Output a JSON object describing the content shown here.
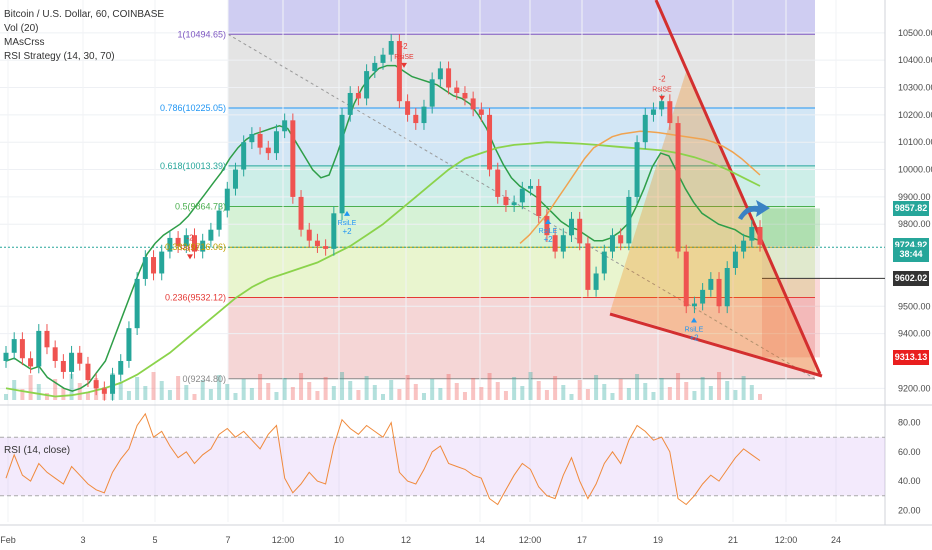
{
  "header": {
    "symbol_line": "Bitcoin / U.S. Dollar, 60, COINBASE",
    "indicators": [
      "Vol (20)",
      "MAsCrss",
      "RSI Strategy (14, 30, 70)"
    ]
  },
  "rsi_panel": {
    "label": "RSI (14, close)"
  },
  "price_axis": {
    "ticks": [
      {
        "value": 10500,
        "label": "10500.00"
      },
      {
        "value": 10400,
        "label": "10400.00"
      },
      {
        "value": 10300,
        "label": "10300.00"
      },
      {
        "value": 10200,
        "label": "10200.00"
      },
      {
        "value": 10100,
        "label": "10100.00"
      },
      {
        "value": 10000,
        "label": "10000.00"
      },
      {
        "value": 9900,
        "label": "9900.00"
      },
      {
        "value": 9800,
        "label": "9800.00"
      },
      {
        "value": 9500,
        "label": "9500.00"
      },
      {
        "value": 9400,
        "label": "9400.00"
      },
      {
        "value": 9200,
        "label": "9200.00"
      }
    ],
    "tags": [
      {
        "value": 9857.82,
        "label": "9857.82",
        "color": "#26a69a"
      },
      {
        "value": 9724.92,
        "label": "9724.92",
        "color": "#26a69a"
      },
      {
        "value": 9690,
        "label": "38:44",
        "color": "#26a69a"
      },
      {
        "value": 9602.02,
        "label": "9602.02",
        "color": "#333333"
      },
      {
        "value": 9313.13,
        "label": "9313.13",
        "color": "#e91e1e"
      }
    ]
  },
  "rsi_axis": {
    "ticks": [
      {
        "value": 80,
        "label": "80.00"
      },
      {
        "value": 60,
        "label": "60.00"
      },
      {
        "value": 40,
        "label": "40.00"
      },
      {
        "value": 20,
        "label": "20.00"
      }
    ]
  },
  "time_axis": {
    "labels": [
      {
        "x": 8,
        "label": "Feb"
      },
      {
        "x": 83,
        "label": "3"
      },
      {
        "x": 155,
        "label": "5"
      },
      {
        "x": 228,
        "label": "7"
      },
      {
        "x": 283,
        "label": "12:00"
      },
      {
        "x": 339,
        "label": "10"
      },
      {
        "x": 406,
        "label": "12"
      },
      {
        "x": 480,
        "label": "14"
      },
      {
        "x": 530,
        "label": "12:00"
      },
      {
        "x": 582,
        "label": "17"
      },
      {
        "x": 658,
        "label": "19"
      },
      {
        "x": 733,
        "label": "21"
      },
      {
        "x": 786,
        "label": "12:00"
      },
      {
        "x": 836,
        "label": "24"
      }
    ]
  },
  "fibonacci": [
    {
      "level": "1",
      "price": 10494.65,
      "label": "1(10494.65)",
      "color": "#7e57c2"
    },
    {
      "level": "0.786",
      "price": 10225.05,
      "label": "0.786(10225.05)",
      "color": "#2196f3"
    },
    {
      "level": "0.618",
      "price": 10013.39,
      "label": "0.618(10013.39)",
      "color": "#26a69a"
    },
    {
      "level": "0.5",
      "price": 9864.73,
      "label": "0.5(9864.73)",
      "color": "#4caf50"
    },
    {
      "level": "0.382",
      "price": 9716.06,
      "label": "0.382(9716.06)",
      "color": "#c0a000"
    },
    {
      "level": "0.236",
      "price": 9532.12,
      "label": "0.236(9532.12)",
      "color": "#e53935"
    },
    {
      "level": "0",
      "price": 9234.8,
      "label": "0(9234.80)",
      "color": "#888888"
    }
  ],
  "signals": [
    {
      "price": 10390,
      "label": "RsiSE",
      "qty": "-2",
      "color": "#e53935"
    },
    {
      "price": 10270,
      "label": "RsiSE",
      "qty": "-2",
      "color": "#e53935"
    },
    {
      "price": 9690,
      "label": "RsiSE",
      "qty": "-2",
      "color": "#e53935"
    },
    {
      "price": 9860,
      "label": "RsiLE",
      "qty": "+2",
      "color": "#2196f3"
    },
    {
      "price": 9830,
      "label": "RsiLE",
      "qty": "+2",
      "color": "#2196f3"
    },
    {
      "price": 9470,
      "label": "RsiLE",
      "qty": "+2",
      "color": "#2196f3"
    }
  ],
  "chart_data": {
    "type": "line",
    "price_range": [
      9150,
      10620
    ],
    "price_series_close": [
      9330,
      9380,
      9310,
      9280,
      9410,
      9350,
      9300,
      9260,
      9330,
      9290,
      9230,
      9200,
      9180,
      9250,
      9300,
      9420,
      9600,
      9680,
      9620,
      9700,
      9750,
      9720,
      9760,
      9700,
      9740,
      9780,
      9850,
      9930,
      10000,
      10100,
      10130,
      10080,
      10060,
      10140,
      10180,
      9900,
      9780,
      9740,
      9720,
      9710,
      9840,
      10200,
      10280,
      10260,
      10360,
      10390,
      10420,
      10470,
      10250,
      10200,
      10170,
      10230,
      10330,
      10370,
      10300,
      10280,
      10260,
      10220,
      10200,
      10000,
      9900,
      9870,
      9880,
      9930,
      9940,
      9830,
      9760,
      9700,
      9760,
      9820,
      9730,
      9560,
      9620,
      9700,
      9760,
      9730,
      9900,
      10100,
      10200,
      10220,
      10250,
      10170,
      9700,
      9500,
      9510,
      9560,
      9600,
      9500,
      9640,
      9700,
      9740,
      9790,
      9725
    ],
    "ma_fast": [
      9300,
      9310,
      9290,
      9270,
      9280,
      9240,
      9220,
      9200,
      9190,
      9200,
      9220,
      9260,
      9300,
      9380,
      9460,
      9540,
      9620,
      9690,
      9730,
      9760,
      9780,
      9800,
      9830,
      9870,
      9910,
      9950,
      9990,
      10040,
      10080,
      10110,
      10130,
      10140,
      10150,
      10160,
      10150,
      10100,
      10050,
      10000,
      9970,
      9980,
      10060,
      10150,
      10240,
      10300,
      10340,
      10370,
      10380,
      10380,
      10360,
      10340,
      10330,
      10320,
      10310,
      10290,
      10270,
      10260,
      10240,
      10200,
      10150,
      10080,
      10020,
      9970,
      9940,
      9920,
      9900,
      9870,
      9840,
      9810,
      9790,
      9780,
      9760,
      9740,
      9740,
      9750,
      9770,
      9800,
      9860,
      9930,
      10010,
      10060,
      10050,
      9990,
      9930,
      9880,
      9840,
      9820,
      9800,
      9790,
      9780,
      9760,
      9750,
      9740
    ],
    "ma_slow": [
      9200,
      9190,
      9180,
      9170,
      9175,
      9185,
      9200,
      9220,
      9250,
      9290,
      9330,
      9380,
      9430,
      9480,
      9530,
      9570,
      9600,
      9620,
      9640,
      9660,
      9690,
      9720,
      9760,
      9800,
      9850,
      9900,
      9950,
      10000,
      10040,
      10060,
      10080,
      10090,
      10095,
      10100,
      10098,
      10095,
      10090,
      10085,
      10080,
      10075,
      10070,
      10060,
      10045,
      10025,
      10000,
      9970,
      9940
    ],
    "rsi": [
      42,
      58,
      44,
      40,
      52,
      46,
      42,
      38,
      50,
      44,
      38,
      34,
      32,
      46,
      55,
      62,
      78,
      86,
      70,
      74,
      64,
      56,
      60,
      52,
      58,
      62,
      72,
      76,
      70,
      74,
      68,
      62,
      72,
      78,
      42,
      32,
      38,
      46,
      40,
      38,
      64,
      82,
      76,
      72,
      78,
      74,
      70,
      80,
      46,
      40,
      38,
      48,
      60,
      64,
      52,
      50,
      48,
      44,
      42,
      28,
      24,
      34,
      44,
      52,
      48,
      36,
      30,
      28,
      44,
      56,
      40,
      28,
      38,
      52,
      60,
      52,
      68,
      78,
      74,
      68,
      70,
      60,
      28,
      24,
      30,
      38,
      44,
      40,
      48,
      56,
      62,
      58,
      54
    ],
    "rsi_levels": {
      "upper": 70,
      "lower": 30
    },
    "rsi_range": [
      12,
      90
    ],
    "projected_targets": [
      9857.82,
      9602.02,
      9313.13
    ]
  }
}
